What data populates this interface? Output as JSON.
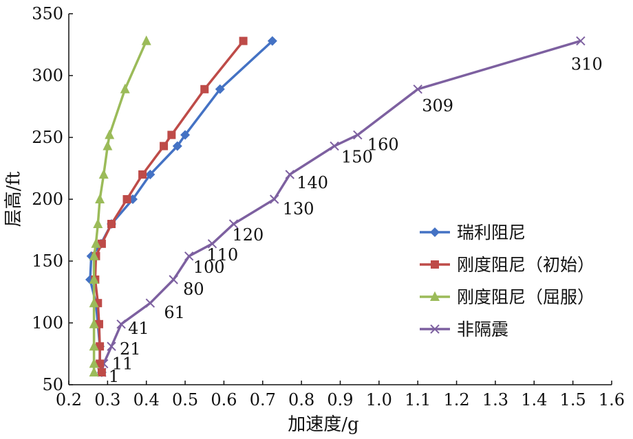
{
  "chart_data": {
    "type": "line",
    "xlabel": "加速度/g",
    "ylabel": "层高/ft",
    "xlim": [
      0.2,
      1.6
    ],
    "ylim": [
      50,
      350
    ],
    "xticks": [
      "0.2",
      "0.3",
      "0.4",
      "0.5",
      "0.6",
      "0.7",
      "0.8",
      "0.9",
      "1.0",
      "1.1",
      "1.2",
      "1.3",
      "1.4",
      "1.5",
      "1.6"
    ],
    "yticks": [
      "50",
      "100",
      "150",
      "200",
      "250",
      "300",
      "350"
    ],
    "grid": false,
    "legend_position": "right",
    "series": [
      {
        "name": "瑞利阻尼",
        "color": "#4472c4",
        "marker": "diamond",
        "points": [
          {
            "x": 0.285,
            "y": 60
          },
          {
            "x": 0.28,
            "y": 67
          },
          {
            "x": 0.28,
            "y": 81
          },
          {
            "x": 0.275,
            "y": 99
          },
          {
            "x": 0.27,
            "y": 116
          },
          {
            "x": 0.255,
            "y": 135
          },
          {
            "x": 0.258,
            "y": 154
          },
          {
            "x": 0.283,
            "y": 164
          },
          {
            "x": 0.31,
            "y": 180
          },
          {
            "x": 0.365,
            "y": 200
          },
          {
            "x": 0.41,
            "y": 220
          },
          {
            "x": 0.48,
            "y": 243
          },
          {
            "x": 0.5,
            "y": 252
          },
          {
            "x": 0.59,
            "y": 289
          },
          {
            "x": 0.725,
            "y": 328
          }
        ]
      },
      {
        "name": "刚度阻尼（初始）",
        "color": "#be4b48",
        "marker": "square",
        "points": [
          {
            "x": 0.285,
            "y": 60
          },
          {
            "x": 0.28,
            "y": 67
          },
          {
            "x": 0.28,
            "y": 81
          },
          {
            "x": 0.278,
            "y": 99
          },
          {
            "x": 0.275,
            "y": 116
          },
          {
            "x": 0.268,
            "y": 135
          },
          {
            "x": 0.27,
            "y": 154
          },
          {
            "x": 0.285,
            "y": 164
          },
          {
            "x": 0.31,
            "y": 180
          },
          {
            "x": 0.35,
            "y": 200
          },
          {
            "x": 0.39,
            "y": 220
          },
          {
            "x": 0.445,
            "y": 243
          },
          {
            "x": 0.465,
            "y": 252
          },
          {
            "x": 0.55,
            "y": 289
          },
          {
            "x": 0.65,
            "y": 328
          }
        ]
      },
      {
        "name": "刚度阻尼（屈服）",
        "color": "#9bbb59",
        "marker": "triangle",
        "points": [
          {
            "x": 0.265,
            "y": 60
          },
          {
            "x": 0.265,
            "y": 67
          },
          {
            "x": 0.265,
            "y": 81
          },
          {
            "x": 0.265,
            "y": 99
          },
          {
            "x": 0.265,
            "y": 116
          },
          {
            "x": 0.265,
            "y": 135
          },
          {
            "x": 0.265,
            "y": 154
          },
          {
            "x": 0.27,
            "y": 164
          },
          {
            "x": 0.275,
            "y": 180
          },
          {
            "x": 0.28,
            "y": 200
          },
          {
            "x": 0.29,
            "y": 220
          },
          {
            "x": 0.3,
            "y": 243
          },
          {
            "x": 0.305,
            "y": 252
          },
          {
            "x": 0.345,
            "y": 289
          },
          {
            "x": 0.4,
            "y": 328
          }
        ]
      },
      {
        "name": "非隔震",
        "color": "#7d60a0",
        "marker": "x",
        "points": [
          {
            "x": 0.285,
            "y": 60,
            "label": "1"
          },
          {
            "x": 0.29,
            "y": 67,
            "label": "11"
          },
          {
            "x": 0.31,
            "y": 81,
            "label": "21"
          },
          {
            "x": 0.335,
            "y": 99,
            "label": "41"
          },
          {
            "x": 0.41,
            "y": 116,
            "label": "61"
          },
          {
            "x": 0.47,
            "y": 135,
            "label": "80"
          },
          {
            "x": 0.51,
            "y": 154,
            "label": "100"
          },
          {
            "x": 0.57,
            "y": 164,
            "label": "110"
          },
          {
            "x": 0.625,
            "y": 180,
            "label": "120"
          },
          {
            "x": 0.73,
            "y": 200,
            "label": "130"
          },
          {
            "x": 0.77,
            "y": 220,
            "label": "140"
          },
          {
            "x": 0.885,
            "y": 243,
            "label": "150"
          },
          {
            "x": 0.945,
            "y": 252,
            "label": "160"
          },
          {
            "x": 1.1,
            "y": 289,
            "label": "309"
          },
          {
            "x": 1.52,
            "y": 328,
            "label": "310"
          }
        ]
      }
    ]
  }
}
